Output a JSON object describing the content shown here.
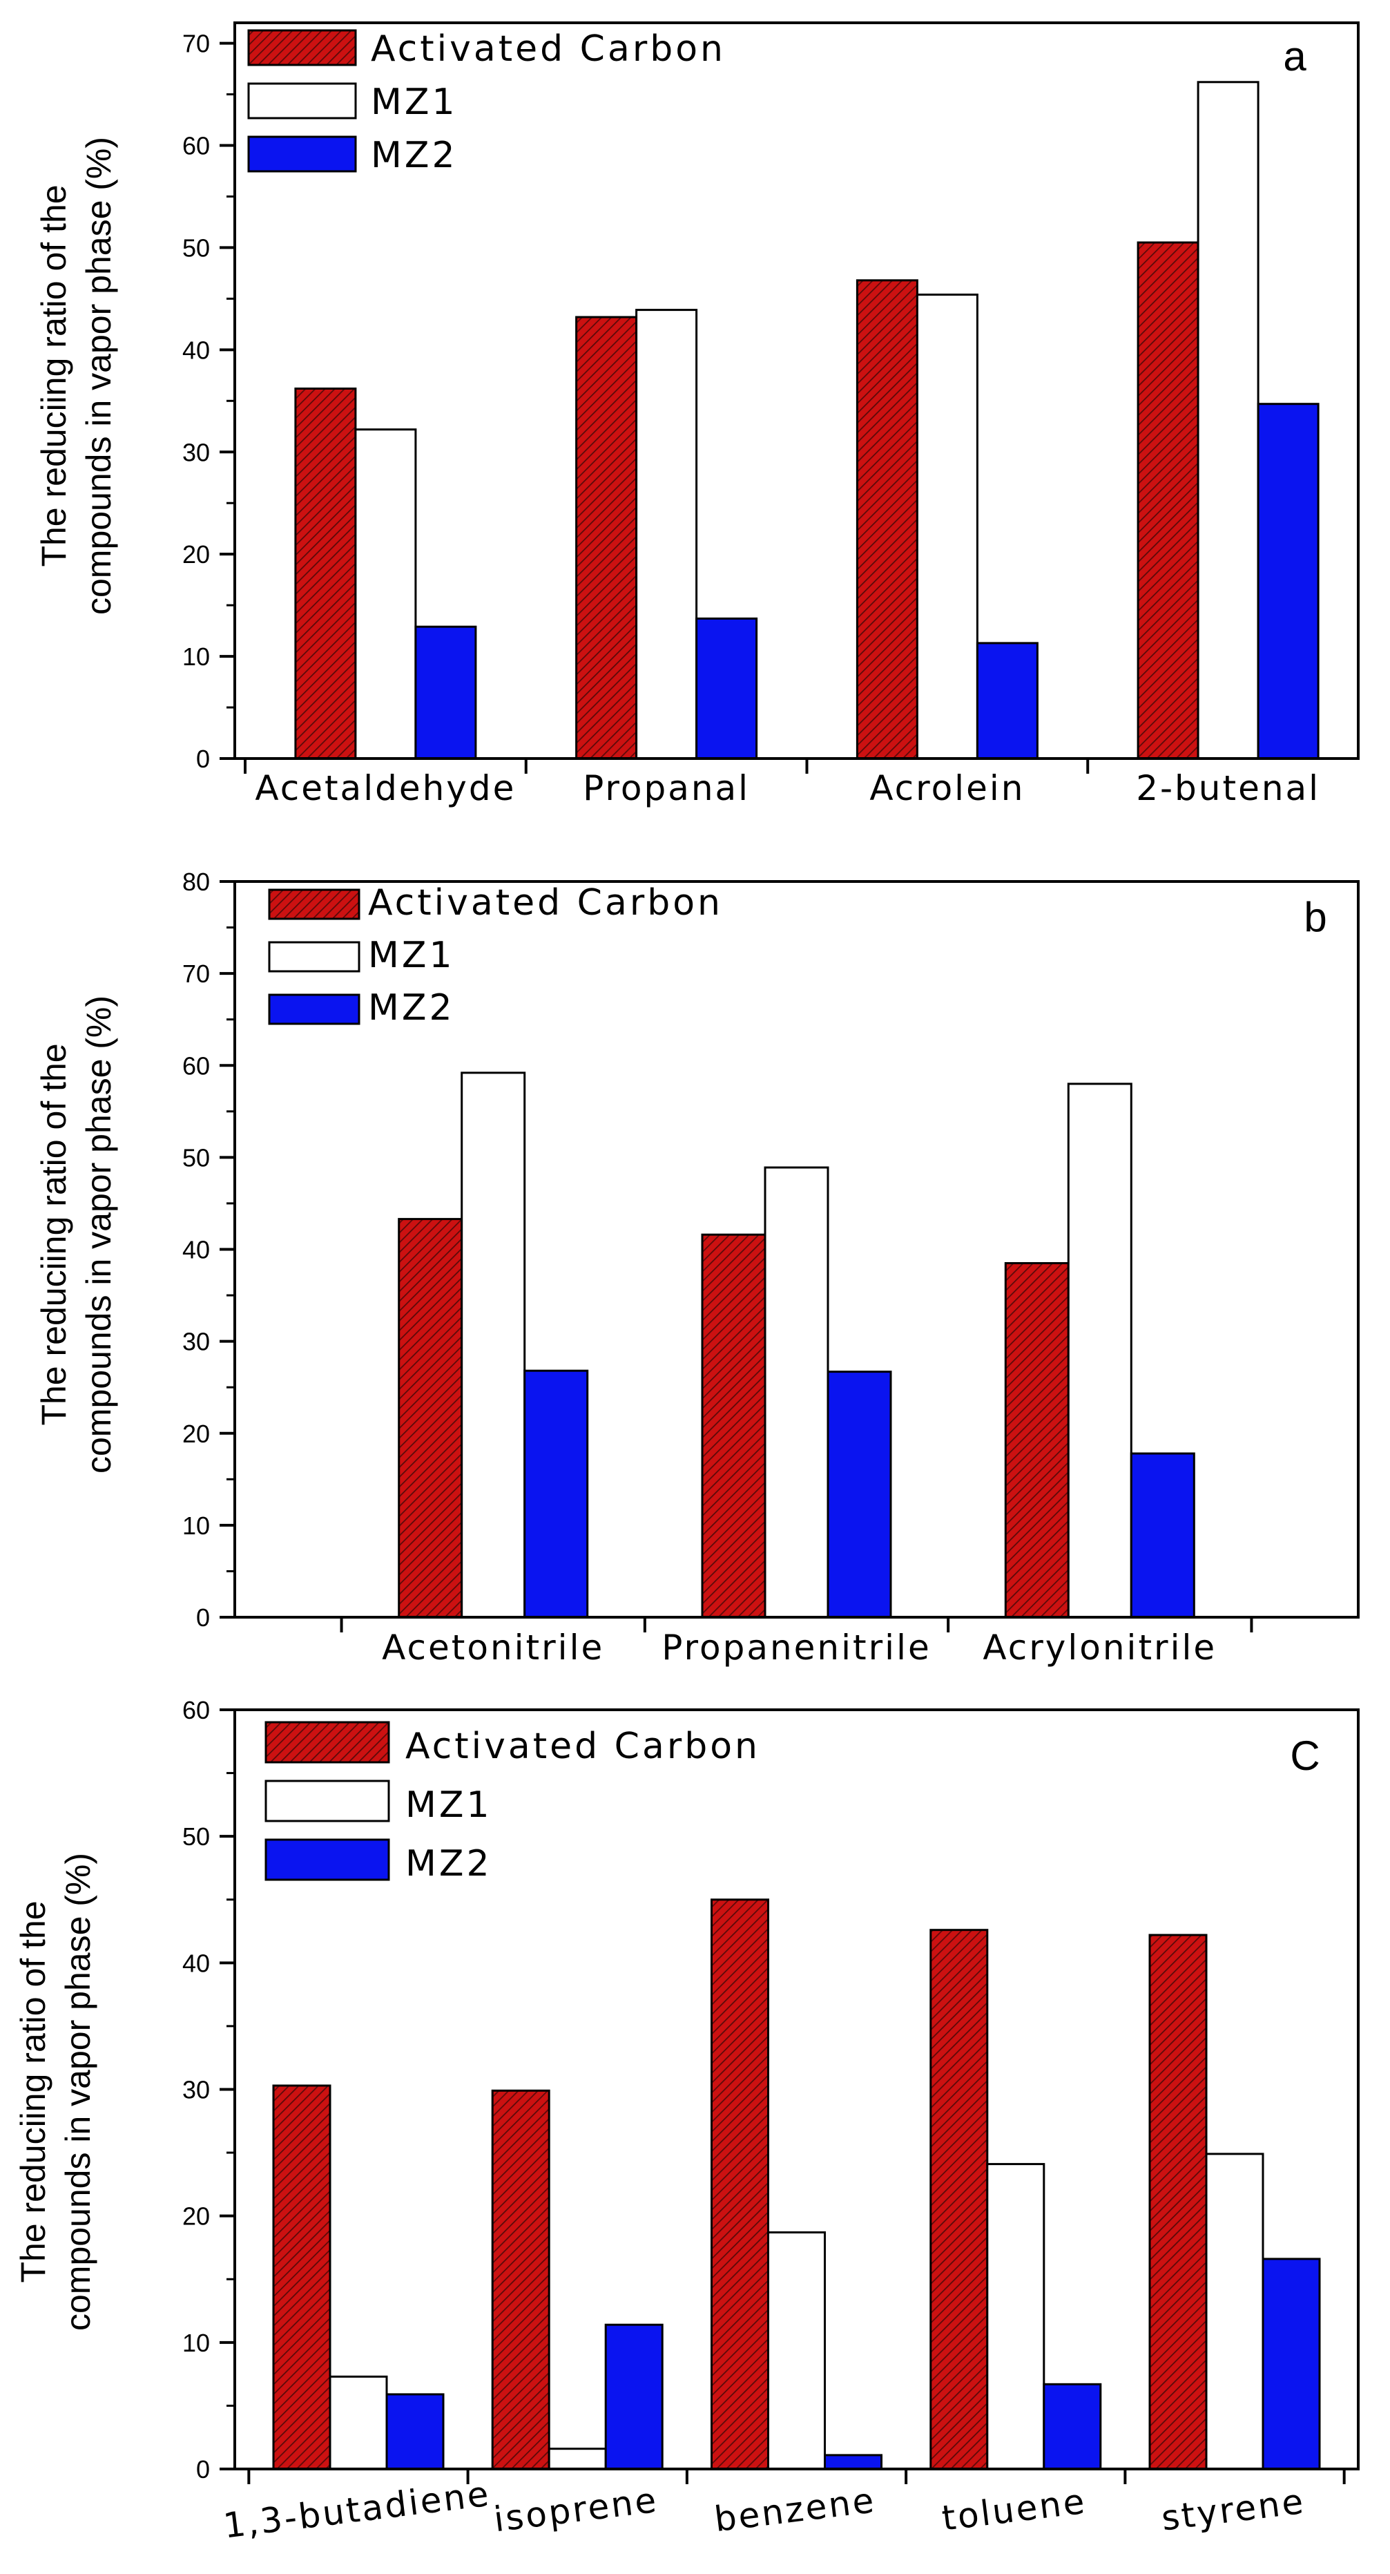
{
  "colors": {
    "activated_carbon": "#cc1111",
    "activated_carbon_hatch": "#5a0a0a",
    "mz1": "#ffffff",
    "mz2": "#0a14f0",
    "axis": "#000000"
  },
  "chart_data": [
    {
      "type": "bar",
      "panel_label": "a",
      "categories": [
        "Acetaldehyde",
        "Propanal",
        "Acrolein",
        "2-butenal"
      ],
      "series": [
        {
          "name": "Activated Carbon",
          "values": [
            36.2,
            43.2,
            46.8,
            50.5
          ]
        },
        {
          "name": "MZ1",
          "values": [
            32.2,
            43.9,
            45.4,
            66.2
          ]
        },
        {
          "name": "MZ2",
          "values": [
            12.9,
            13.7,
            11.3,
            34.7
          ]
        }
      ],
      "ylabel": [
        "The reduciing ratio of the",
        "compounds in vapor phase (%)"
      ],
      "ylim": [
        0,
        72
      ],
      "yticks": [
        0,
        10,
        20,
        30,
        40,
        50,
        60,
        70
      ],
      "grid": false,
      "legend_position": "top-left"
    },
    {
      "type": "bar",
      "panel_label": "b",
      "categories": [
        "Acetonitrile",
        "Propanenitrile",
        "Acrylonitrile"
      ],
      "series": [
        {
          "name": "Activated Carbon",
          "values": [
            43.3,
            41.6,
            38.5
          ]
        },
        {
          "name": "MZ1",
          "values": [
            59.2,
            48.9,
            58.0
          ]
        },
        {
          "name": "MZ2",
          "values": [
            26.8,
            26.7,
            17.8
          ]
        }
      ],
      "ylabel": [
        "The reduciing ratio of the",
        "compounds in vapor phase (%)"
      ],
      "ylim": [
        0,
        80
      ],
      "yticks": [
        0,
        10,
        20,
        30,
        40,
        50,
        60,
        70,
        80
      ],
      "grid": false,
      "legend_position": "top-left"
    },
    {
      "type": "bar",
      "panel_label": "C",
      "categories": [
        "1,3-butadiene",
        "isoprene",
        "benzene",
        "toluene",
        "styrene"
      ],
      "series": [
        {
          "name": "Activated Carbon",
          "values": [
            30.3,
            29.9,
            45.0,
            42.6,
            42.2
          ]
        },
        {
          "name": "MZ1",
          "values": [
            7.3,
            1.6,
            18.7,
            24.1,
            24.9
          ]
        },
        {
          "name": "MZ2",
          "values": [
            5.9,
            11.4,
            1.1,
            6.7,
            16.6
          ]
        }
      ],
      "ylabel": [
        "The reduciing ratio of the",
        "compounds in vapor phase (%)"
      ],
      "ylim": [
        0,
        60
      ],
      "yticks": [
        0,
        10,
        20,
        30,
        40,
        50,
        60
      ],
      "grid": false,
      "legend_position": "top-left"
    }
  ]
}
